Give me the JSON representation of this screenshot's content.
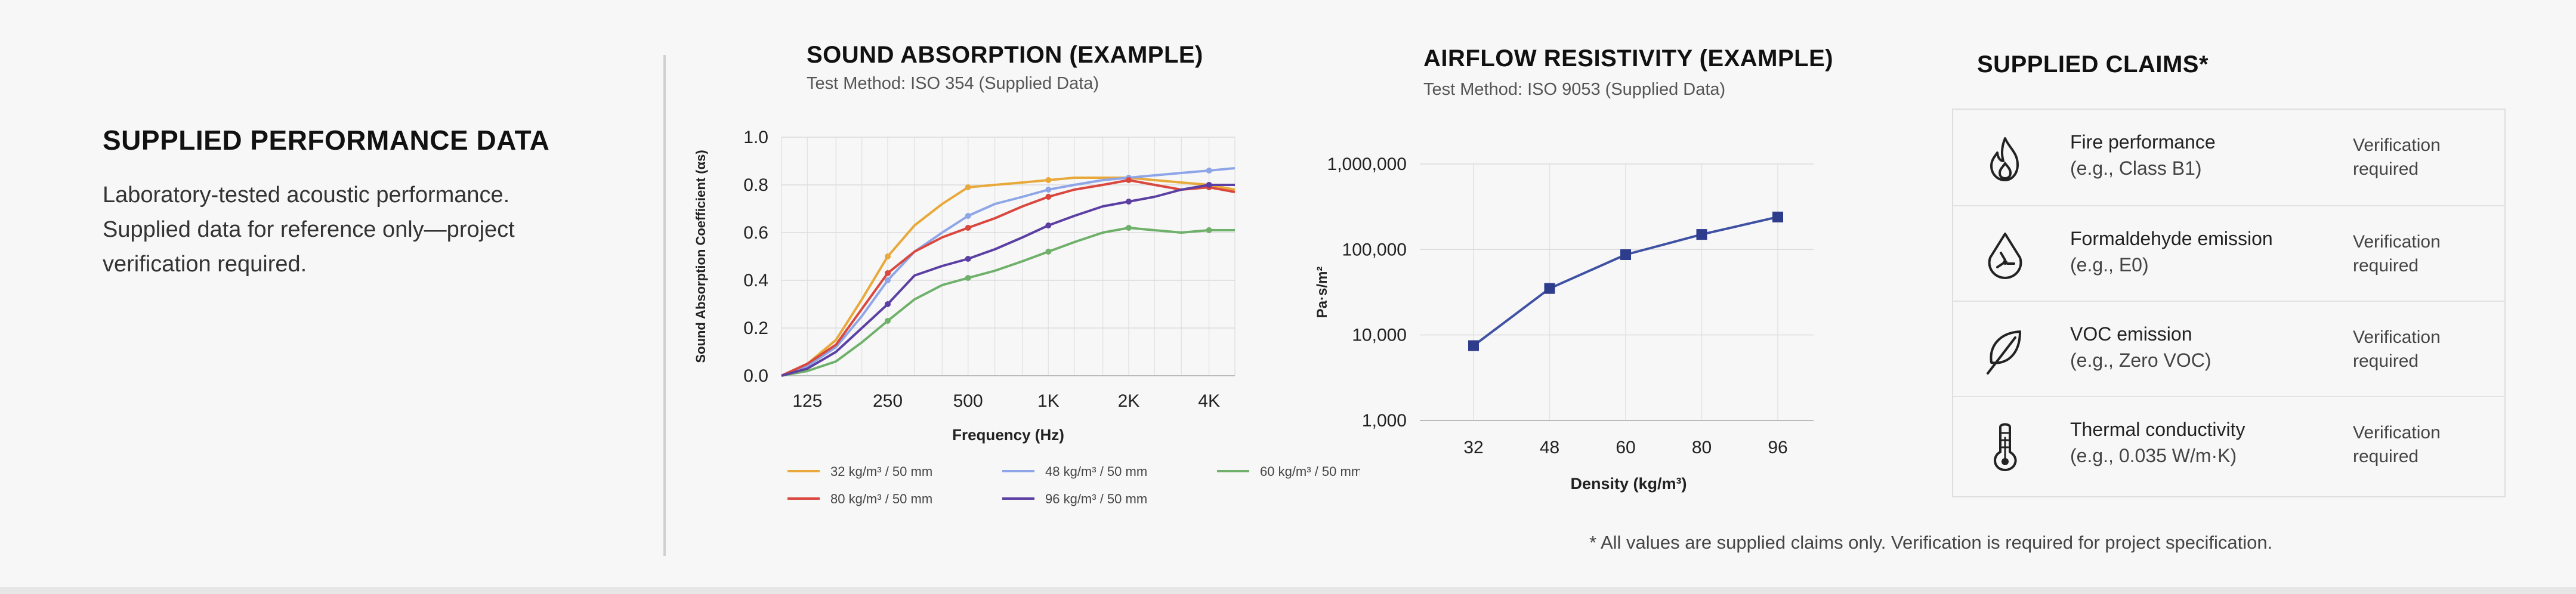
{
  "intro": {
    "title": "SUPPLIED PERFORMANCE DATA",
    "line1": "Laboratory-tested acoustic performance.",
    "line2": "Supplied data for reference only—project",
    "line3": "verification required."
  },
  "absorption": {
    "title": "SOUND ABSORPTION (EXAMPLE)",
    "subtitle": "Test Method: ISO 354 (Supplied Data)"
  },
  "airflow": {
    "title": "AIRFLOW RESISTIVITY (EXAMPLE)",
    "subtitle": "Test Method: ISO 9053 (Supplied Data)"
  },
  "claims": {
    "title": "SUPPLIED CLAIMS*",
    "items": [
      {
        "title": "Fire performance",
        "sub": "(e.g., Class B1)",
        "status": "Verification required",
        "icon": "flame-icon"
      },
      {
        "title": "Formaldehyde emission",
        "sub": "(e.g., E0)",
        "status": "Verification required",
        "icon": "hazard-drop-icon"
      },
      {
        "title": "VOC emission",
        "sub": "(e.g., Zero VOC)",
        "status": "Verification required",
        "icon": "leaf-icon"
      },
      {
        "title": "Thermal conductivity",
        "sub": "(e.g., 0.035 W/m·K)",
        "status": "Verification required",
        "icon": "thermometer-icon"
      }
    ]
  },
  "footnote": "* All values are supplied claims only. Verification is required for project specification.",
  "chart_data": [
    {
      "type": "line",
      "xlabel": "Frequency (Hz)",
      "ylabel": "Sound Absorption Coefficient (αs)",
      "categories": [
        "125",
        "250",
        "500",
        "1K",
        "2K",
        "4K"
      ],
      "x": [
        100,
        125,
        160,
        200,
        250,
        315,
        400,
        500,
        630,
        800,
        1000,
        1250,
        1600,
        2000,
        2500,
        3150,
        4000,
        5000
      ],
      "ylim": [
        0,
        1.0
      ],
      "yticks": [
        "0.0",
        "0.2",
        "0.4",
        "0.6",
        "0.8",
        "1.0"
      ],
      "x_scale": "log",
      "grid": true,
      "legend_position": "bottom",
      "series": [
        {
          "name": "32 kg/m³ / 50 mm",
          "color": "#e8a93a",
          "values": [
            0.0,
            0.05,
            0.15,
            0.32,
            0.5,
            0.63,
            0.72,
            0.79,
            0.8,
            0.81,
            0.82,
            0.83,
            0.83,
            0.83,
            0.82,
            0.81,
            0.8,
            0.78
          ]
        },
        {
          "name": "48 kg/m³ / 50 mm",
          "color": "#8ea6e8",
          "values": [
            0.0,
            0.04,
            0.12,
            0.25,
            0.4,
            0.52,
            0.6,
            0.67,
            0.72,
            0.75,
            0.78,
            0.8,
            0.82,
            0.83,
            0.84,
            0.85,
            0.86,
            0.87
          ]
        },
        {
          "name": "60 kg/m³ / 50 mm",
          "color": "#6fb06a",
          "values": [
            0.0,
            0.02,
            0.06,
            0.14,
            0.23,
            0.32,
            0.38,
            0.41,
            0.44,
            0.48,
            0.52,
            0.56,
            0.6,
            0.62,
            0.61,
            0.6,
            0.61,
            0.61
          ]
        },
        {
          "name": "80 kg/m³ / 50 mm",
          "color": "#d9473f",
          "values": [
            0.0,
            0.05,
            0.13,
            0.28,
            0.43,
            0.52,
            0.58,
            0.62,
            0.66,
            0.71,
            0.75,
            0.78,
            0.8,
            0.82,
            0.8,
            0.78,
            0.79,
            0.77
          ]
        },
        {
          "name": "96 kg/m³ / 50 mm",
          "color": "#5b3fa3",
          "values": [
            0.0,
            0.03,
            0.1,
            0.2,
            0.3,
            0.42,
            0.46,
            0.49,
            0.53,
            0.58,
            0.63,
            0.67,
            0.71,
            0.73,
            0.75,
            0.78,
            0.8,
            0.8
          ]
        }
      ]
    },
    {
      "type": "line",
      "xlabel": "Density (kg/m³)",
      "ylabel": "Pa·s/m²",
      "categories": [
        "32",
        "48",
        "60",
        "80",
        "96"
      ],
      "y_scale": "log",
      "ylim": [
        1000,
        1000000
      ],
      "yticks": [
        "1,000",
        "10,000",
        "100,000",
        "1,000,000"
      ],
      "grid": true,
      "series": [
        {
          "name": "",
          "color": "#3f51a3",
          "values": [
            7500,
            35000,
            87000,
            150000,
            240000
          ]
        }
      ]
    }
  ]
}
